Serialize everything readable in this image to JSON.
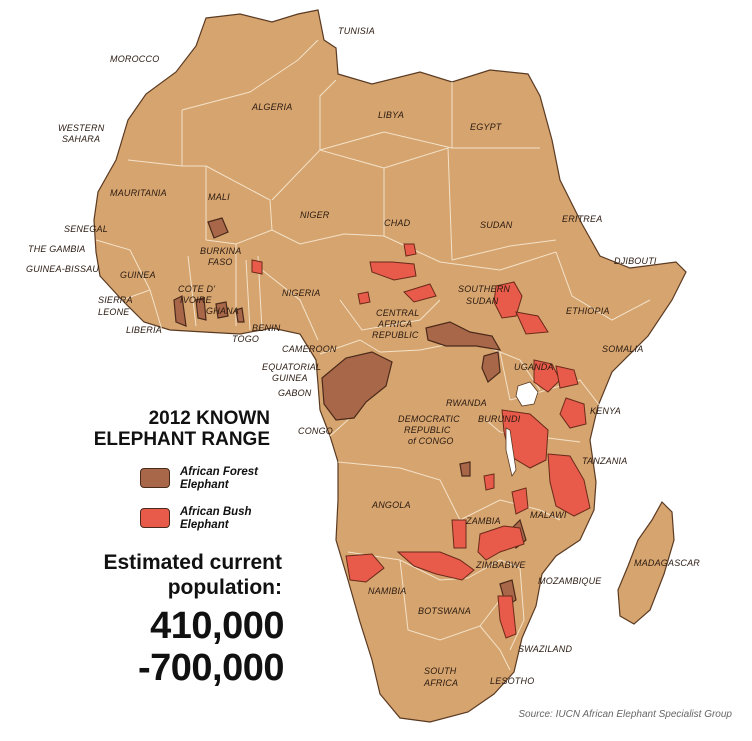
{
  "legend": {
    "title_line1": "2012 KNOWN",
    "title_line2": "ELEPHANT RANGE",
    "items": [
      {
        "label_line1": "African Forest",
        "label_line2": "Elephant",
        "color": "#a9674a"
      },
      {
        "label_line1": "African Bush",
        "label_line2": "Elephant",
        "color": "#e85a4a"
      }
    ]
  },
  "population": {
    "label_line1": "Estimated current",
    "label_line2": "population:",
    "value_line1": "410,000",
    "value_line2": "-700,000"
  },
  "source": "Source: IUCN African Elephant Specialist Group",
  "countries": {
    "tunisia": "TUNISIA",
    "morocco": "MOROCCO",
    "algeria": "ALGERIA",
    "libya": "LIBYA",
    "egypt": "EGYPT",
    "western_sahara_1": "WESTERN",
    "western_sahara_2": "SAHARA",
    "mauritania": "MAURITANIA",
    "mali": "MALI",
    "niger": "NIGER",
    "chad": "CHAD",
    "sudan": "SUDAN",
    "eritrea": "ERITREA",
    "djibouti": "DJIBOUTI",
    "senegal": "SENEGAL",
    "gambia": "THE GAMBIA",
    "guinea_bissau": "GUINEA-BISSAU",
    "guinea": "GUINEA",
    "burkina_1": "BURKINA",
    "burkina_2": "FASO",
    "sierra_1": "SIERRA",
    "sierra_2": "LEONE",
    "liberia": "LIBERIA",
    "cote_1": "COTE D'",
    "cote_2": "IVOIRE",
    "ghana": "GHANA",
    "togo": "TOGO",
    "benin": "BENIN",
    "nigeria": "NIGERIA",
    "south_sudan_1": "SOUTHERN",
    "south_sudan_2": "SUDAN",
    "ethiopia": "ETHIOPIA",
    "car_1": "CENTRAL",
    "car_2": "AFRICA",
    "car_3": "REPUBLIC",
    "cameroon": "CAMEROON",
    "eq_guinea_1": "EQUATORIAL",
    "eq_guinea_2": "GUINEA",
    "gabon": "GABON",
    "somalia": "SOMALIA",
    "uganda": "UGANDA",
    "kenya": "KENYA",
    "rwanda": "RWANDA",
    "burundi": "BURUNDI",
    "drc_1": "DEMOCRATIC",
    "drc_2": "REPUBLIC",
    "drc_3": "of CONGO",
    "congo": "CONGO",
    "tanzania": "TANZANIA",
    "angola": "ANGOLA",
    "zambia": "ZAMBIA",
    "malawi": "MALAWI",
    "zimbabwe": "ZIMBABWE",
    "mozambique": "MOZAMBIQUE",
    "madagascar": "MADAGASCAR",
    "namibia": "NAMIBIA",
    "botswana": "BOTSWANA",
    "swaziland": "SWAZILAND",
    "south_africa_1": "SOUTH",
    "south_africa_2": "AFRICA",
    "lesotho": "LESOTHO"
  }
}
